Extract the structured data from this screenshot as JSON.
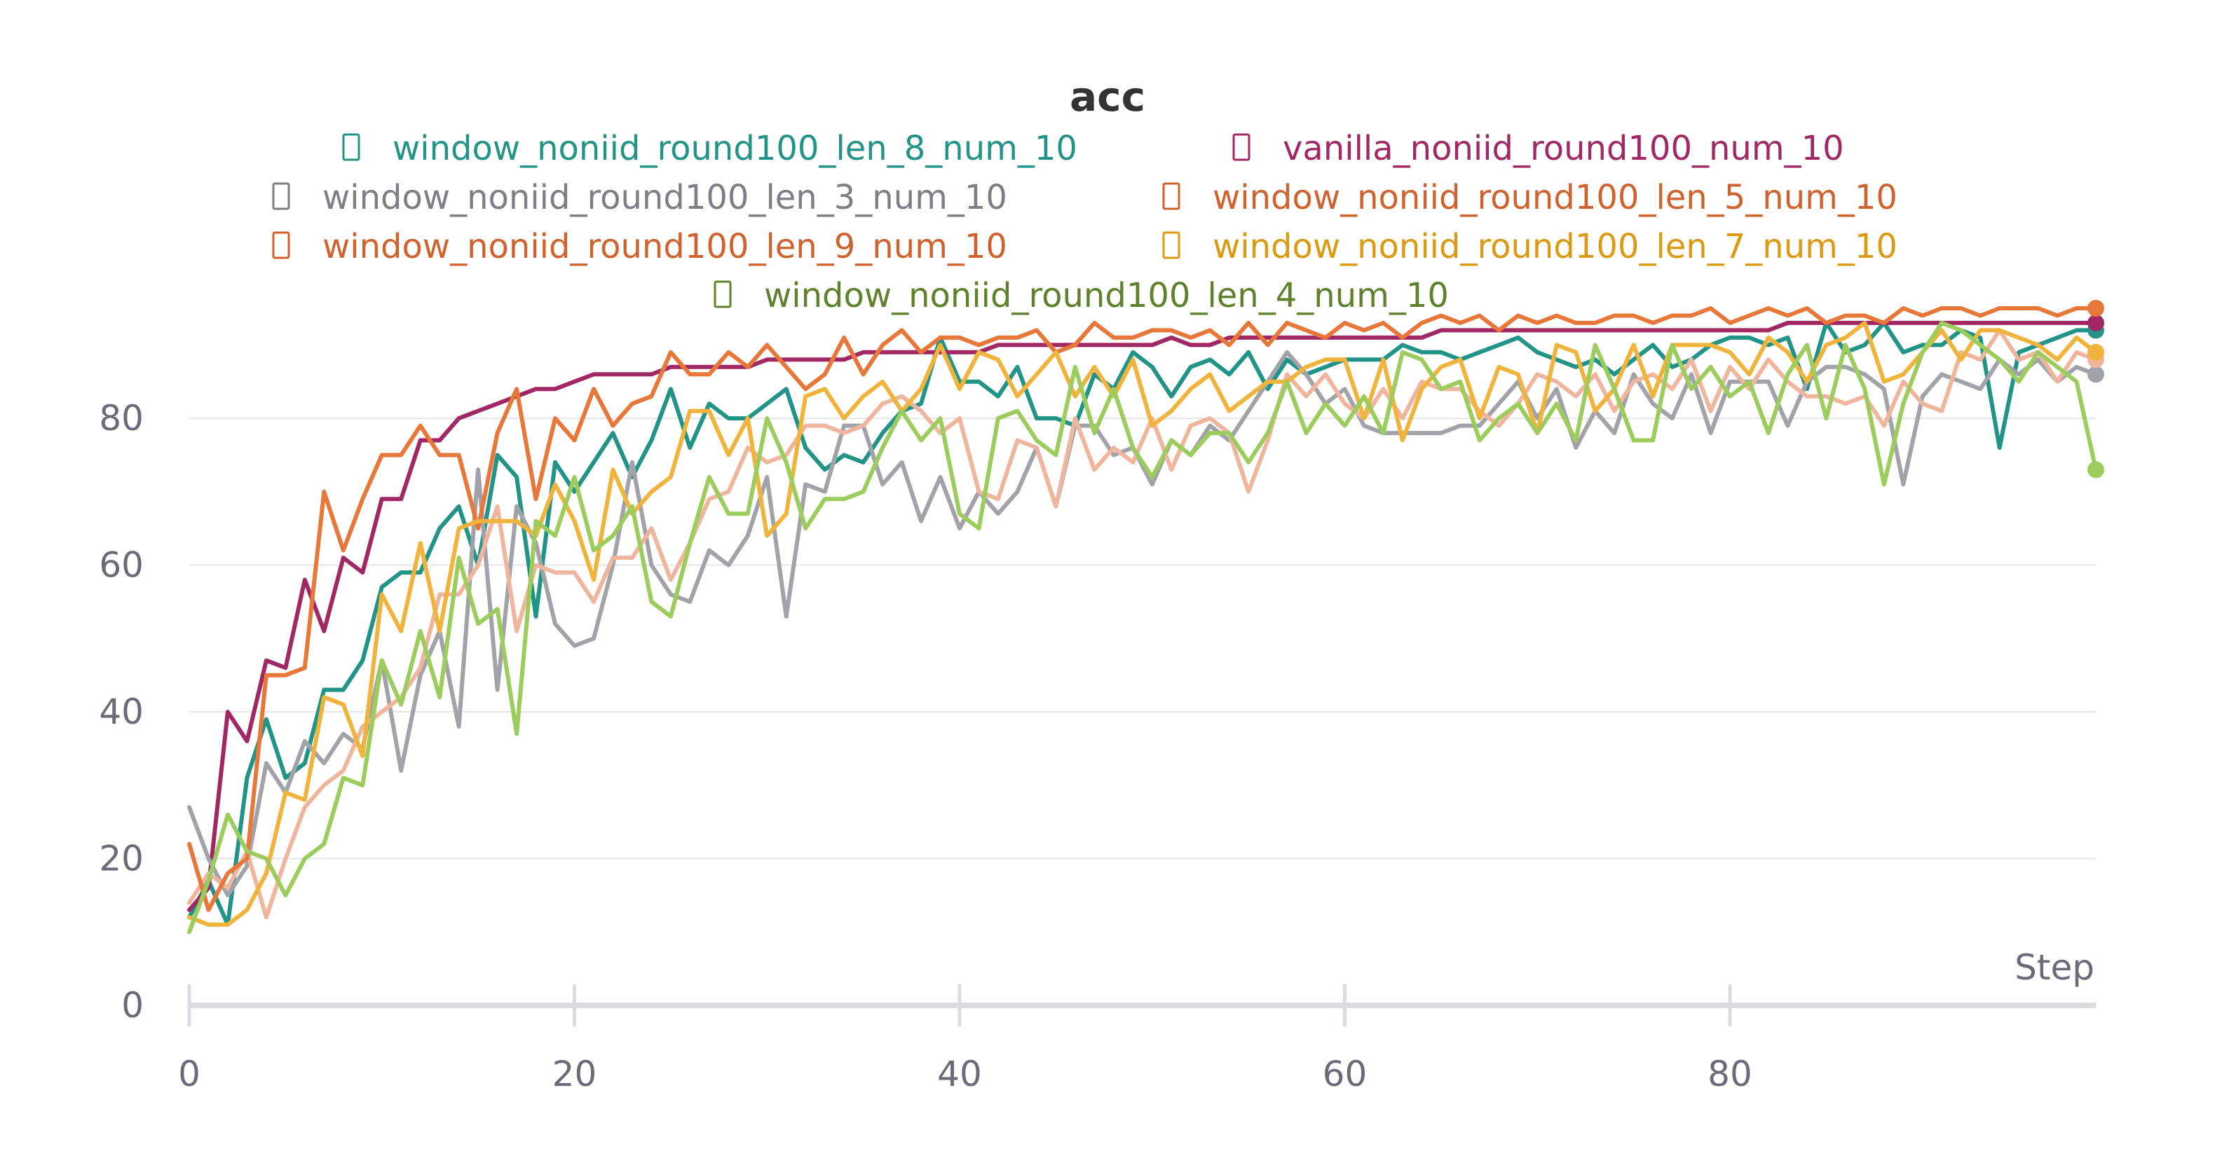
{
  "chart_data": {
    "type": "line",
    "title": "acc",
    "xlabel": "Step",
    "ylabel": "",
    "xlim": [
      0,
      99
    ],
    "ylim": [
      0,
      95
    ],
    "x_ticks": [
      0,
      20,
      40,
      60,
      80
    ],
    "y_ticks": [
      0,
      20,
      40,
      60,
      80
    ],
    "grid": true,
    "legend_position": "top",
    "series": [
      {
        "name": "window_noniid_round100_len_8_num_10",
        "color": "#229487",
        "legend_text_color": "#229487",
        "values": [
          12,
          17,
          11,
          31,
          39,
          31,
          33,
          43,
          43,
          47,
          57,
          59,
          59,
          65,
          68,
          60,
          75,
          72,
          53,
          74,
          70,
          74,
          78,
          72,
          77,
          84,
          76,
          82,
          80,
          80,
          82,
          84,
          76,
          73,
          75,
          74,
          78,
          81,
          82,
          91,
          85,
          85,
          83,
          87,
          80,
          80,
          79,
          86,
          84,
          89,
          87,
          83,
          87,
          88,
          86,
          89,
          84,
          88,
          86,
          87,
          88,
          88,
          88,
          90,
          89,
          89,
          88,
          89,
          90,
          91,
          89,
          88,
          87,
          88,
          86,
          88,
          90,
          87,
          88,
          90,
          91,
          91,
          90,
          91,
          84,
          93,
          89,
          90,
          93,
          89,
          90,
          90,
          92,
          91,
          76,
          89,
          90,
          91,
          92,
          92
        ]
      },
      {
        "name": "vanilla_noniid_round100_num_10",
        "color": "#a12864",
        "legend_text_color": "#a12864",
        "values": [
          13,
          16,
          40,
          36,
          47,
          46,
          58,
          51,
          61,
          59,
          69,
          69,
          77,
          77,
          80,
          81,
          82,
          83,
          84,
          84,
          85,
          86,
          86,
          86,
          86,
          87,
          87,
          87,
          87,
          87,
          88,
          88,
          88,
          88,
          88,
          89,
          89,
          89,
          89,
          89,
          89,
          89,
          90,
          90,
          90,
          90,
          90,
          90,
          90,
          90,
          90,
          91,
          90,
          90,
          91,
          91,
          91,
          91,
          91,
          91,
          91,
          91,
          91,
          91,
          91,
          92,
          92,
          92,
          92,
          92,
          92,
          92,
          92,
          92,
          92,
          92,
          92,
          92,
          92,
          92,
          92,
          92,
          92,
          93,
          93,
          93,
          93,
          93,
          93,
          93,
          93,
          93,
          93,
          93,
          93,
          93,
          93,
          93,
          93,
          93
        ]
      },
      {
        "name": "window_noniid_round100_len_3_num_10",
        "color": "#a2a3a9",
        "legend_text_color": "#7e7f86",
        "values": [
          27,
          20,
          15,
          19,
          33,
          29,
          36,
          33,
          37,
          35,
          47,
          32,
          45,
          51,
          38,
          73,
          43,
          68,
          63,
          52,
          49,
          50,
          60,
          74,
          60,
          56,
          55,
          62,
          60,
          64,
          72,
          53,
          71,
          70,
          79,
          79,
          71,
          74,
          66,
          72,
          65,
          70,
          67,
          70,
          76,
          68,
          79,
          79,
          75,
          76,
          71,
          77,
          75,
          79,
          77,
          81,
          85,
          89,
          86,
          82,
          84,
          79,
          78,
          78,
          78,
          78,
          79,
          79,
          82,
          85,
          80,
          84,
          76,
          81,
          78,
          86,
          82,
          80,
          86,
          78,
          85,
          85,
          85,
          79,
          85,
          87,
          87,
          86,
          84,
          71,
          83,
          86,
          85,
          84,
          88,
          86,
          88,
          85,
          87,
          86
        ]
      },
      {
        "name": "window_noniid_round100_len_5_num_10",
        "color": "#f0b69d",
        "legend_text_color": "#d0632d",
        "values": [
          14,
          18,
          16,
          21,
          12,
          20,
          27,
          30,
          32,
          38,
          40,
          42,
          46,
          56,
          56,
          60,
          68,
          51,
          60,
          59,
          59,
          55,
          61,
          61,
          65,
          58,
          63,
          69,
          70,
          76,
          74,
          75,
          79,
          79,
          78,
          79,
          82,
          83,
          81,
          78,
          80,
          70,
          69,
          77,
          76,
          68,
          80,
          73,
          76,
          74,
          80,
          73,
          79,
          80,
          78,
          70,
          77,
          86,
          83,
          86,
          82,
          80,
          84,
          80,
          85,
          84,
          84,
          81,
          79,
          82,
          86,
          85,
          83,
          86,
          81,
          85,
          86,
          84,
          88,
          81,
          87,
          84,
          88,
          85,
          83,
          83,
          82,
          83,
          79,
          85,
          82,
          81,
          89,
          88,
          92,
          88,
          89,
          85,
          89,
          88
        ]
      },
      {
        "name": "window_noniid_round100_len_9_num_10",
        "color": "#e8773a",
        "legend_text_color": "#d0632d",
        "values": [
          22,
          13,
          18,
          20,
          45,
          45,
          46,
          70,
          62,
          69,
          75,
          75,
          79,
          75,
          75,
          65,
          78,
          84,
          69,
          80,
          77,
          84,
          79,
          82,
          83,
          89,
          86,
          86,
          89,
          87,
          90,
          87,
          84,
          86,
          91,
          86,
          90,
          92,
          89,
          91,
          91,
          90,
          91,
          91,
          92,
          89,
          90,
          93,
          91,
          91,
          92,
          92,
          91,
          92,
          90,
          93,
          90,
          93,
          92,
          91,
          93,
          92,
          93,
          91,
          93,
          94,
          93,
          94,
          92,
          94,
          93,
          94,
          93,
          93,
          94,
          94,
          93,
          94,
          94,
          95,
          93,
          94,
          95,
          94,
          95,
          93,
          94,
          94,
          93,
          95,
          94,
          95,
          95,
          94,
          95,
          95,
          95,
          94,
          95,
          95
        ]
      },
      {
        "name": "window_noniid_round100_len_7_num_10",
        "color": "#f0b43c",
        "legend_text_color": "#dc9a12",
        "values": [
          12,
          11,
          11,
          13,
          18,
          29,
          28,
          42,
          41,
          34,
          56,
          51,
          63,
          51,
          65,
          66,
          66,
          66,
          64,
          71,
          66,
          58,
          73,
          67,
          70,
          72,
          81,
          81,
          75,
          80,
          64,
          67,
          83,
          84,
          80,
          83,
          85,
          81,
          84,
          90,
          84,
          89,
          88,
          83,
          86,
          89,
          83,
          87,
          83,
          88,
          79,
          81,
          84,
          86,
          81,
          83,
          85,
          85,
          87,
          88,
          88,
          80,
          88,
          77,
          84,
          87,
          88,
          80,
          87,
          86,
          78,
          90,
          89,
          81,
          84,
          90,
          83,
          90,
          90,
          90,
          89,
          86,
          91,
          89,
          85,
          90,
          91,
          93,
          85,
          86,
          89,
          92,
          88,
          92,
          92,
          91,
          90,
          88,
          91,
          89
        ]
      },
      {
        "name": "window_noniid_round100_len_4_num_10",
        "color": "#9bcc5c",
        "legend_text_color": "#5f812b",
        "values": [
          10,
          17,
          26,
          21,
          20,
          15,
          20,
          22,
          31,
          30,
          47,
          41,
          51,
          42,
          61,
          52,
          54,
          37,
          66,
          64,
          72,
          62,
          64,
          68,
          55,
          53,
          63,
          72,
          67,
          67,
          80,
          74,
          65,
          69,
          69,
          70,
          76,
          81,
          77,
          80,
          67,
          65,
          80,
          81,
          77,
          75,
          87,
          78,
          84,
          76,
          72,
          77,
          75,
          78,
          78,
          74,
          78,
          85,
          78,
          82,
          79,
          83,
          78,
          89,
          88,
          84,
          85,
          77,
          80,
          82,
          78,
          82,
          77,
          90,
          84,
          77,
          77,
          90,
          84,
          87,
          83,
          85,
          78,
          86,
          90,
          80,
          90,
          84,
          71,
          82,
          89,
          93,
          92,
          90,
          88,
          85,
          89,
          87,
          85,
          73
        ]
      }
    ]
  }
}
